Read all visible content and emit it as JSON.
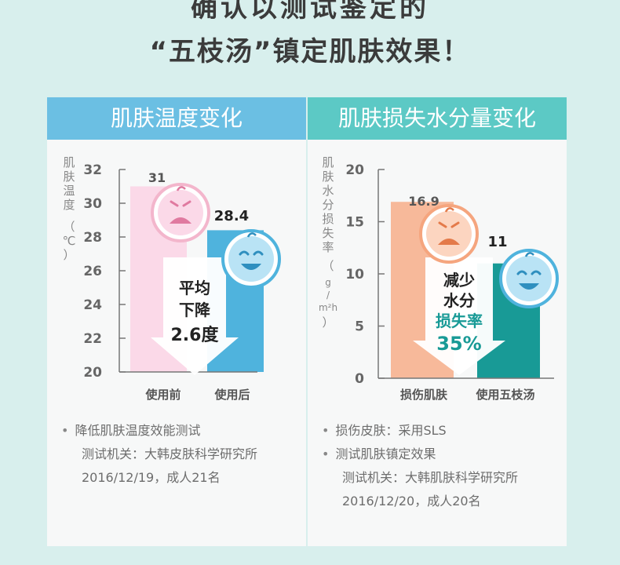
{
  "headline_top": "确认以测试鉴定的",
  "headline_main": "“五枝汤”镇定肌肤效果！",
  "charts": [
    {
      "title": "肌肤温度变化",
      "ylabel": "肌肤温度（℃）",
      "yticks": [
        "32",
        "30",
        "28",
        "26",
        "24",
        "22",
        "20"
      ],
      "categories": [
        "使用前",
        "使用后"
      ],
      "value_labels": [
        "31",
        "28.4"
      ],
      "callout": [
        "平均",
        "下降",
        "2.6度"
      ],
      "notes": [
        "降低肌肤温度效能测试",
        "测试机关：大韩皮肤科学研究所",
        "2016/12/19，成人21名"
      ]
    },
    {
      "title": "肌肤损失水分量变化",
      "ylabel": "肌肤水分损失率（g/m²h）",
      "yticks": [
        "20",
        "15",
        "10",
        "5",
        "0"
      ],
      "categories": [
        "损伤肌肤",
        "使用五枝汤"
      ],
      "value_labels": [
        "16.9",
        "11"
      ],
      "callout": [
        "减少",
        "水分",
        "损失率",
        "35%"
      ],
      "notes": [
        "损伤皮肤：采用SLS",
        "测试肌肤镇定效果",
        "测试机关：大韩肌肤科学研究所",
        "2016/12/20，成人20名"
      ]
    }
  ],
  "chart_data": [
    {
      "type": "bar",
      "title": "肌肤温度变化",
      "ylabel": "肌肤温度（℃）",
      "categories": [
        "使用前",
        "使用后"
      ],
      "values": [
        31,
        28.4
      ],
      "ylim": [
        20,
        32
      ],
      "colors": [
        "#fbd9e8",
        "#4fb3dd"
      ]
    },
    {
      "type": "bar",
      "title": "肌肤损失水分量变化",
      "ylabel": "肌肤水分损失率（g/m²h）",
      "categories": [
        "损伤肌肤",
        "使用五枝汤"
      ],
      "values": [
        16.9,
        11
      ],
      "ylim": [
        0,
        20
      ],
      "colors": [
        "#f7b99a",
        "#189a96"
      ]
    }
  ]
}
